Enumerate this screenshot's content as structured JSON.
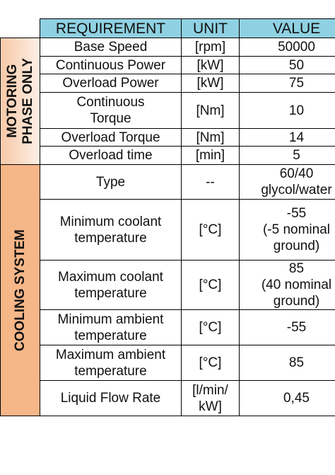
{
  "table": {
    "header": [
      "REQUIREMENT",
      "UNIT",
      "VALUE"
    ],
    "groups": [
      {
        "label": "MOTORING\nPHASE ONLY",
        "rows": [
          [
            "Base Speed",
            "[rpm]",
            "50000"
          ],
          [
            "Continuous Power",
            "[kW]",
            "50"
          ],
          [
            "Overload Power",
            "[kW]",
            "75"
          ],
          [
            "Continuous\nTorque",
            "[Nm]",
            "10"
          ],
          [
            "Overload Torque",
            "[Nm]",
            "14"
          ],
          [
            "Overload time",
            "[min]",
            "5"
          ]
        ]
      },
      {
        "label": "COOLING SYSTEM",
        "rows": [
          [
            "Type",
            "--",
            "60/40\nglycol/water"
          ],
          [
            "Minimum coolant\ntemperature",
            "[°C]",
            "-55\n(-5 nominal\nground)"
          ],
          [
            "Maximum coolant\ntemperature",
            "[°C]",
            "85\n(40 nominal\nground)"
          ],
          [
            "Minimum ambient\ntemperature",
            "[°C]",
            "-55"
          ],
          [
            "Maximum ambient\ntemperature",
            "[°C]",
            "85"
          ],
          [
            "Liquid Flow Rate",
            "[l/min/\nkW]",
            "0,45"
          ]
        ]
      }
    ]
  }
}
